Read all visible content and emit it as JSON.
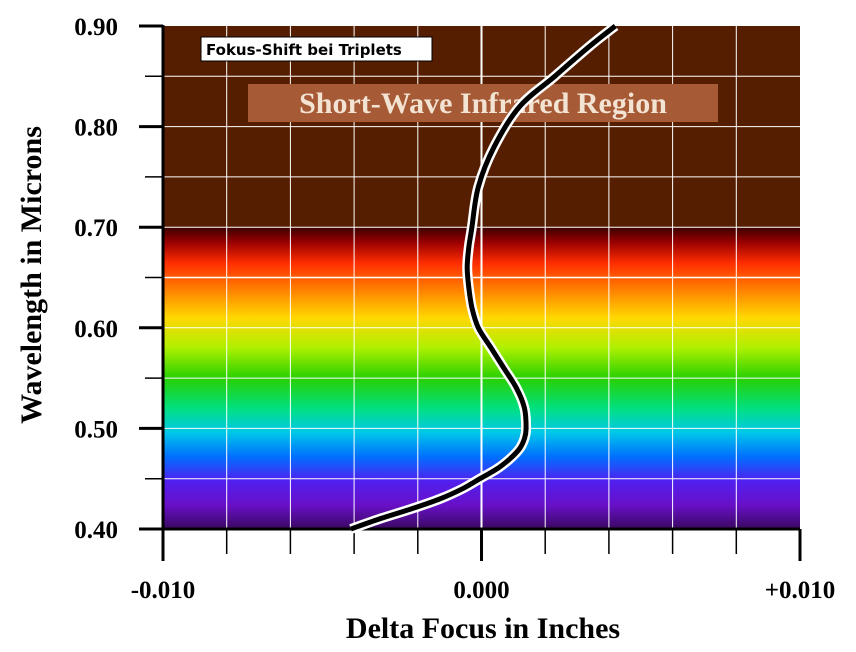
{
  "chart_data": {
    "type": "line",
    "title": "",
    "xlabel": "Delta Focus in Inches",
    "ylabel": "Wavelength in Microns",
    "xlim": [
      -0.01,
      0.01
    ],
    "ylim": [
      0.4,
      0.9
    ],
    "x_ticks": [
      {
        "value": -0.01,
        "label": "-0.010"
      },
      {
        "value": 0.0,
        "label": "0.000"
      },
      {
        "value": 0.01,
        "label": "+0.010"
      }
    ],
    "y_ticks": [
      {
        "value": 0.4,
        "label": "0.40"
      },
      {
        "value": 0.5,
        "label": "0.50"
      },
      {
        "value": 0.6,
        "label": "0.60"
      },
      {
        "value": 0.7,
        "label": "0.70"
      },
      {
        "value": 0.8,
        "label": "0.80"
      },
      {
        "value": 0.9,
        "label": "0.90"
      }
    ],
    "grid": true,
    "legend": {
      "label": "Fokus-Shift bei Triplets",
      "position": "top-left"
    },
    "annotation": "Short-Wave Infrared Region",
    "infrared_band": [
      0.7,
      0.9
    ],
    "series": [
      {
        "x": [
          -0.0041,
          -0.0032,
          -0.0022,
          -0.0013,
          -0.0006,
          -5e-05,
          0.0005,
          0.0009,
          0.0012,
          0.00135,
          0.0014,
          0.00135,
          0.0011,
          0.0007,
          0.0003,
          -0.0001,
          -0.0003,
          -0.0004,
          -0.00045,
          -0.0004,
          -0.0003,
          -0.0001,
          0.0004,
          0.0012,
          0.0023,
          0.0034,
          0.0042
        ],
        "y": [
          0.4,
          0.41,
          0.42,
          0.43,
          0.44,
          0.45,
          0.46,
          0.47,
          0.48,
          0.49,
          0.5,
          0.52,
          0.54,
          0.56,
          0.58,
          0.6,
          0.62,
          0.64,
          0.66,
          0.68,
          0.7,
          0.74,
          0.78,
          0.82,
          0.85,
          0.88,
          0.9
        ]
      }
    ],
    "colors": {
      "infrared_bg": "#561e00",
      "grid": "#ffffff",
      "curve": "#000000",
      "curve_outline": "#ffffff",
      "annotation_bg": "#a65a36"
    }
  }
}
